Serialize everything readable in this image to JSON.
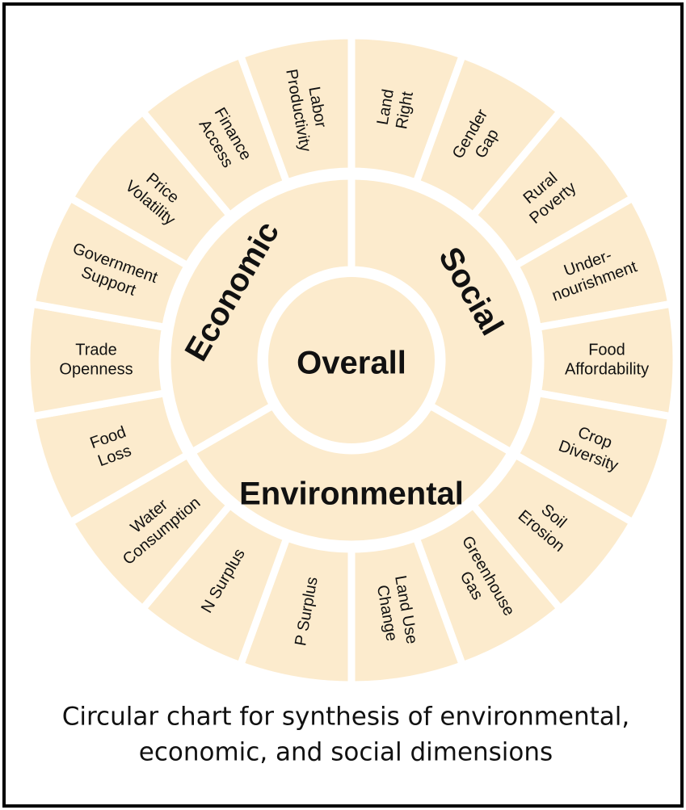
{
  "center": "Overall",
  "dimensions": [
    {
      "label": "Economic",
      "indicators": [
        {
          "lines": [
            "Food",
            "Loss"
          ]
        },
        {
          "lines": [
            "Trade",
            "Openness"
          ]
        },
        {
          "lines": [
            "Government",
            "Support"
          ]
        },
        {
          "lines": [
            "Price",
            "Volatility"
          ]
        },
        {
          "lines": [
            "Finance",
            "Access"
          ]
        },
        {
          "lines": [
            "Labor",
            "Productivity"
          ]
        }
      ]
    },
    {
      "label": "Social",
      "indicators": [
        {
          "lines": [
            "Land",
            "Right"
          ]
        },
        {
          "lines": [
            "Gender",
            "Gap"
          ]
        },
        {
          "lines": [
            "Rural",
            "Poverty"
          ]
        },
        {
          "lines": [
            "Under-",
            "nourishment"
          ]
        },
        {
          "lines": [
            "Food",
            "Affordability"
          ]
        },
        {
          "lines": [
            "Crop",
            "Diversity"
          ]
        }
      ]
    },
    {
      "label": "Environmental",
      "indicators": [
        {
          "lines": [
            "Soil",
            "Erosion"
          ]
        },
        {
          "lines": [
            "Greenhouse",
            "Gas"
          ]
        },
        {
          "lines": [
            "Land Use",
            "Change"
          ]
        },
        {
          "lines": [
            "P Surplus"
          ]
        },
        {
          "lines": [
            "N Surplus"
          ]
        },
        {
          "lines": [
            "Water",
            "Consumption"
          ]
        }
      ]
    }
  ],
  "caption": [
    "Circular chart for synthesis of environmental,",
    "economic, and  social dimensions"
  ]
}
